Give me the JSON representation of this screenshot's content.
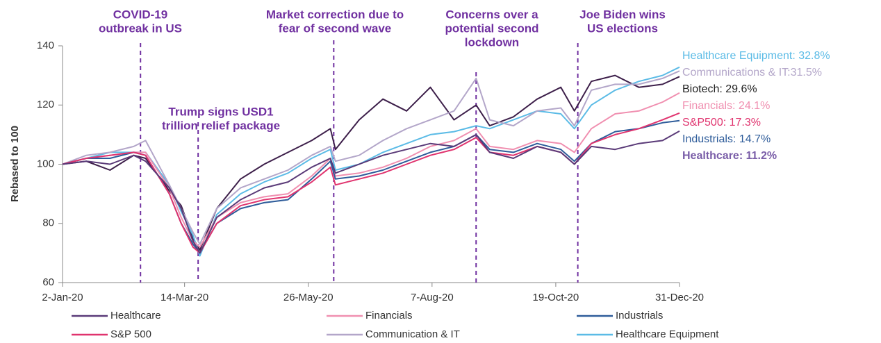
{
  "chart_data": {
    "type": "line",
    "y_label": "Rebased to 100",
    "x": [
      "2020-01-02",
      "2020-01-16",
      "2020-01-30",
      "2020-02-13",
      "2020-02-20",
      "2020-03-05",
      "2020-03-12",
      "2020-03-19",
      "2020-03-23",
      "2020-04-02",
      "2020-04-16",
      "2020-04-30",
      "2020-05-14",
      "2020-05-28",
      "2020-06-08",
      "2020-06-11",
      "2020-06-25",
      "2020-07-09",
      "2020-07-23",
      "2020-08-06",
      "2020-08-20",
      "2020-09-02",
      "2020-09-10",
      "2020-09-24",
      "2020-10-08",
      "2020-10-22",
      "2020-10-30",
      "2020-11-09",
      "2020-11-23",
      "2020-12-07",
      "2020-12-21",
      "2020-12-31"
    ],
    "xlim": [
      "2020-01-02",
      "2020-12-31"
    ],
    "xticks": [
      {
        "value": "2020-01-02",
        "label": "2-Jan-20"
      },
      {
        "value": "2020-03-14",
        "label": "14-Mar-20"
      },
      {
        "value": "2020-05-26",
        "label": "26-May-20"
      },
      {
        "value": "2020-08-07",
        "label": "7-Aug-20"
      },
      {
        "value": "2020-10-19",
        "label": "19-Oct-20"
      },
      {
        "value": "2020-12-31",
        "label": "31-Dec-20"
      }
    ],
    "ylim": [
      60,
      140
    ],
    "yticks": [
      60,
      80,
      100,
      120,
      140
    ],
    "series": [
      {
        "name": "Healthcare",
        "color": "#5a3a78",
        "values": [
          100,
          101,
          100,
          103,
          101,
          92,
          85,
          74,
          70,
          82,
          88,
          92,
          94,
          99,
          102,
          97,
          100,
          103,
          105,
          107,
          106,
          110,
          104,
          102,
          106,
          104,
          100,
          106,
          105,
          107,
          108,
          111.2
        ]
      },
      {
        "name": "Financials",
        "color": "#f08fb0",
        "values": [
          100,
          102,
          103,
          104,
          104,
          92,
          82,
          74,
          72,
          82,
          87,
          89,
          90,
          96,
          102,
          96,
          97,
          99,
          102,
          106,
          108,
          112,
          106,
          105,
          108,
          107,
          104,
          112,
          117,
          118,
          121,
          124.1
        ]
      },
      {
        "name": "Industrials",
        "color": "#2e5c9a",
        "values": [
          100,
          102,
          102,
          104,
          103,
          90,
          80,
          73,
          70,
          80,
          85,
          87,
          88,
          95,
          101,
          95,
          96,
          98,
          101,
          104,
          106,
          110,
          105,
          104,
          107,
          105,
          101,
          107,
          111,
          112,
          114,
          114.7
        ]
      },
      {
        "name": "S&P 500",
        "color": "#e0336e",
        "values": [
          100,
          102,
          103,
          104,
          103,
          90,
          80,
          72,
          70,
          80,
          86,
          88,
          89,
          94,
          99,
          93,
          95,
          97,
          100,
          103,
          105,
          109,
          104,
          103,
          106,
          104,
          100,
          107,
          110,
          112,
          115,
          117.3
        ]
      },
      {
        "name": "Communication & IT",
        "color": "#b3a6c9",
        "values": [
          100,
          103,
          104,
          106,
          108,
          93,
          85,
          77,
          73,
          85,
          92,
          95,
          98,
          103,
          106,
          101,
          103,
          108,
          112,
          115,
          118,
          129,
          115,
          113,
          118,
          119,
          113,
          125,
          127,
          127,
          129,
          131.5
        ]
      },
      {
        "name": "Healthcare Equipment",
        "color": "#5bbbe6",
        "values": [
          100,
          102,
          104,
          104,
          104,
          93,
          84,
          76,
          69,
          83,
          90,
          94,
          97,
          102,
          105,
          98,
          100,
          104,
          107,
          110,
          111,
          113,
          112,
          115,
          118,
          117,
          112,
          120,
          125,
          128,
          130,
          132.8
        ]
      }
    ],
    "other_lines": [
      {
        "color": "#3d1f4a",
        "values": [
          100,
          101,
          98,
          103,
          102,
          91,
          86,
          75,
          71,
          85,
          95,
          100,
          104,
          108,
          112,
          105,
          115,
          122,
          118,
          126,
          115,
          120,
          113,
          116,
          122,
          126,
          118,
          128,
          130,
          126,
          127,
          129.6
        ]
      }
    ],
    "end_labels": [
      {
        "text": "Healthcare Equipment: 32.8%",
        "color": "#5bbbe6"
      },
      {
        "text": "Communications & IT:31.5%",
        "color": "#b3a6c9"
      },
      {
        "text": "Biotech: 29.6%",
        "color": "#222222"
      },
      {
        "text": "Financials: 24.1%",
        "color": "#f08fb0"
      },
      {
        "text": "S&P500: 17.3%",
        "color": "#e0336e"
      },
      {
        "text": "Industrials: 14.7%",
        "color": "#2e5c9a"
      },
      {
        "text": "Healthcare: 11.2%",
        "color": "#7a5ea8",
        "bold": true
      }
    ],
    "annotations": [
      {
        "x": "2020-02-17",
        "lines": [
          "COVID-19",
          "outbreak in US"
        ]
      },
      {
        "x": "2020-03-22",
        "lines": [
          "Trump signs USD1",
          "trillion relief package"
        ]
      },
      {
        "x": "2020-06-10",
        "lines": [
          "Market correction due to",
          "fear of second wave"
        ]
      },
      {
        "x": "2020-09-02",
        "lines": [
          "Concerns over a",
          "potential second",
          "lockdown"
        ]
      },
      {
        "x": "2020-11-01",
        "lines": [
          "Joe Biden wins",
          "US elections"
        ]
      }
    ]
  }
}
